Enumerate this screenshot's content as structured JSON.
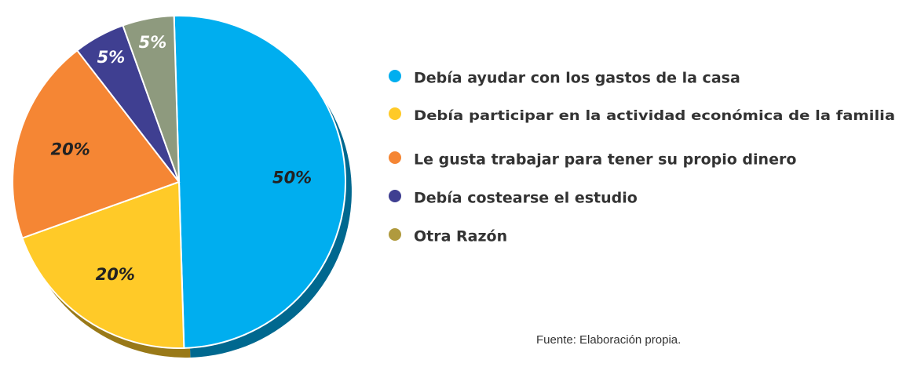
{
  "chart_data": {
    "type": "pie",
    "categories": [
      "Debía ayudar con los gastos de la casa",
      "Debía participar en la actividad económica de la familia",
      "Le gusta trabajar para tener su propio dinero",
      "Debía costearse el estudio",
      "Otra Razón"
    ],
    "values": [
      50,
      20,
      20,
      5,
      5
    ],
    "value_labels": [
      "50%",
      "20%",
      "20%",
      "5%",
      "5%"
    ],
    "colors": [
      "#00aeef",
      "#ffca28",
      "#f58634",
      "#3f3f91",
      "#8e9a7e"
    ],
    "legend_colors": [
      "#00aeef",
      "#ffca28",
      "#f58634",
      "#3f3f91",
      "#b09a3e"
    ],
    "source": "Fuente: Elaboración propia."
  }
}
